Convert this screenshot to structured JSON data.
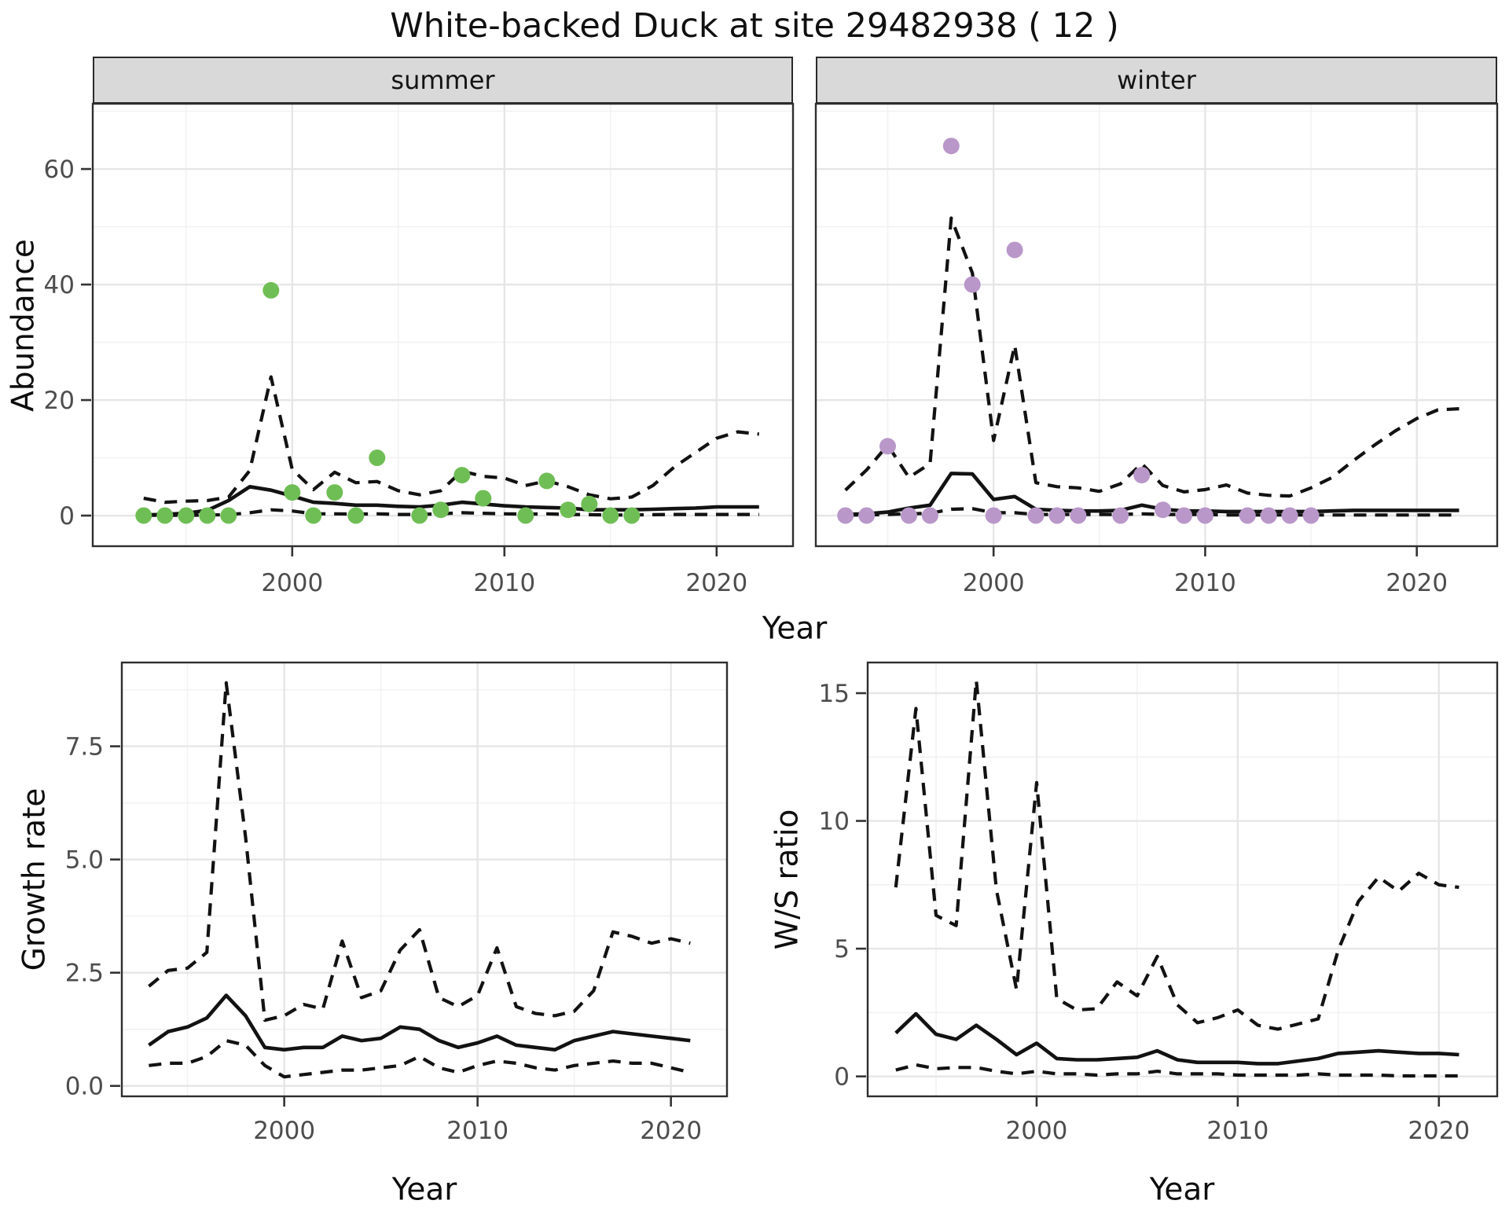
{
  "title": "White-backed Duck at site 29482938 ( 12 )",
  "colors": {
    "summer_points": "#6fbe55",
    "winter_points": "#b997c9",
    "line": "#121212",
    "strip_background": "#d9d9d9",
    "panel_border": "#2e2e2e",
    "grid_major": "#e6e6e6",
    "grid_minor": "#f1f1f1",
    "tick_label": "#4d4d4d"
  },
  "chart_data": [
    {
      "id": "abundance_summer",
      "type": "line",
      "facet_label": "summer",
      "xlabel": "Year",
      "ylabel": "Abundance",
      "xlim": [
        1990.6,
        2023.6
      ],
      "ylim": [
        -5.3,
        71.3
      ],
      "grid": "on",
      "legend": "none",
      "x_ticks": [
        2000,
        2010,
        2020
      ],
      "x_tick_labels": [
        "2000",
        "2010",
        "2020"
      ],
      "x_minor_ticks": [
        1995,
        2005,
        2015
      ],
      "y_ticks": [
        0,
        20,
        40,
        60
      ],
      "y_tick_labels": [
        "0",
        "20",
        "40",
        "60"
      ],
      "y_minor_ticks": [
        10,
        30,
        50,
        70
      ],
      "x": [
        1993,
        1994,
        1995,
        1996,
        1997,
        1998,
        1999,
        2000,
        2001,
        2002,
        2003,
        2004,
        2005,
        2006,
        2007,
        2008,
        2009,
        2010,
        2011,
        2012,
        2013,
        2014,
        2015,
        2016,
        2017,
        2018,
        2019,
        2020,
        2021,
        2022
      ],
      "series": [
        {
          "name": "upper_ci_dashed",
          "style": "dashed",
          "y": [
            3.0,
            2.3,
            2.5,
            2.6,
            3.2,
            7.8,
            24,
            8.0,
            4.5,
            7.5,
            5.7,
            5.9,
            4.3,
            3.6,
            4.3,
            7.7,
            6.8,
            6.5,
            5.2,
            6.0,
            5.0,
            3.6,
            2.9,
            3.2,
            5.2,
            8.4,
            10.9,
            13.4,
            14.5,
            14.1
          ]
        },
        {
          "name": "lower_ci_dashed",
          "style": "dashed",
          "y": [
            0.05,
            0.05,
            0.05,
            0.1,
            0.15,
            0.5,
            1.0,
            0.8,
            0.3,
            0.3,
            0.25,
            0.3,
            0.2,
            0.2,
            0.3,
            0.5,
            0.4,
            0.3,
            0.25,
            0.3,
            0.2,
            0.15,
            0.1,
            0.1,
            0.15,
            0.2,
            0.2,
            0.2,
            0.2,
            0.2
          ]
        },
        {
          "name": "median_solid",
          "style": "solid",
          "y": [
            0.1,
            0.2,
            0.4,
            0.9,
            2.6,
            5.0,
            4.4,
            3.4,
            2.3,
            2.1,
            1.8,
            1.8,
            1.6,
            1.5,
            1.8,
            2.3,
            2.0,
            1.7,
            1.5,
            1.4,
            1.3,
            1.0,
            1.0,
            1.0,
            1.1,
            1.2,
            1.3,
            1.5,
            1.5,
            1.5
          ]
        }
      ],
      "points": {
        "name": "observed_summer_counts",
        "color": "#6fbe55",
        "x": [
          1993,
          1994,
          1995,
          1996,
          1997,
          1999,
          2000,
          2001,
          2002,
          2003,
          2004,
          2006,
          2007,
          2008,
          2009,
          2011,
          2012,
          2013,
          2014,
          2015,
          2016
        ],
        "y": [
          0,
          0,
          0,
          0,
          0,
          39,
          4,
          0,
          4,
          0,
          10,
          0,
          1,
          7,
          3,
          0,
          6,
          1,
          2,
          0,
          0
        ]
      }
    },
    {
      "id": "abundance_winter",
      "type": "line",
      "facet_label": "winter",
      "xlabel": "Year",
      "ylabel": "Abundance",
      "xlim": [
        1991.6,
        2023.8
      ],
      "ylim": [
        -5.3,
        71.3
      ],
      "grid": "on",
      "legend": "none",
      "x_ticks": [
        2000,
        2010,
        2020
      ],
      "x_tick_labels": [
        "2000",
        "2010",
        "2020"
      ],
      "x_minor_ticks": [
        1995,
        2005,
        2015
      ],
      "y_ticks": [
        0,
        20,
        40,
        60
      ],
      "y_tick_labels": [
        "0",
        "20",
        "40",
        "60"
      ],
      "y_minor_ticks": [
        10,
        30,
        50,
        70
      ],
      "x": [
        1993,
        1994,
        1995,
        1996,
        1997,
        1998,
        1999,
        2000,
        2001,
        2002,
        2003,
        2004,
        2005,
        2006,
        2007,
        2008,
        2009,
        2010,
        2011,
        2012,
        2013,
        2014,
        2015,
        2016,
        2017,
        2018,
        2019,
        2020,
        2021,
        2022
      ],
      "series": [
        {
          "name": "upper_ci_dashed",
          "style": "dashed",
          "y": [
            4.4,
            7.9,
            12.2,
            6.6,
            9.0,
            51.5,
            42,
            13,
            29.5,
            5.7,
            5.0,
            4.8,
            4.2,
            5.5,
            9.0,
            5.2,
            4.1,
            4.5,
            5.3,
            3.9,
            3.5,
            3.4,
            4.8,
            6.6,
            9.5,
            12.2,
            14.7,
            16.8,
            18.3,
            18.5
          ]
        },
        {
          "name": "lower_ci_dashed",
          "style": "dashed",
          "y": [
            0.1,
            0.1,
            0.2,
            0.3,
            0.4,
            1.1,
            1.2,
            0.5,
            0.5,
            0.2,
            0.2,
            0.2,
            0.2,
            0.2,
            0.3,
            0.2,
            0.2,
            0.2,
            0.1,
            0.1,
            0.1,
            0.1,
            0.1,
            0.1,
            0.1,
            0.1,
            0.1,
            0.1,
            0.1,
            0.1
          ]
        },
        {
          "name": "median_solid",
          "style": "solid",
          "y": [
            0.2,
            0.3,
            0.6,
            1.3,
            1.8,
            7.3,
            7.2,
            2.8,
            3.3,
            1.1,
            0.9,
            0.8,
            0.8,
            0.9,
            1.8,
            1.1,
            0.8,
            0.8,
            0.7,
            0.7,
            0.7,
            0.7,
            0.7,
            0.8,
            0.9,
            0.9,
            0.9,
            0.9,
            0.9,
            0.9
          ]
        }
      ],
      "points": {
        "name": "observed_winter_counts",
        "color": "#b997c9",
        "x": [
          1993,
          1994,
          1995,
          1996,
          1997,
          1998,
          1999,
          2000,
          2001,
          2002,
          2003,
          2004,
          2006,
          2007,
          2008,
          2009,
          2010,
          2012,
          2013,
          2014,
          2015
        ],
        "y": [
          0,
          0,
          12,
          0,
          0,
          64,
          40,
          0,
          46,
          0,
          0,
          0,
          0,
          7,
          1,
          0,
          0,
          0,
          0,
          0,
          0
        ]
      }
    },
    {
      "id": "growth_rate",
      "type": "line",
      "facet_label": "",
      "xlabel": "Year",
      "ylabel": "Growth rate",
      "xlim": [
        1991.6,
        2022.9
      ],
      "ylim": [
        -0.23,
        9.35
      ],
      "grid": "on",
      "legend": "none",
      "x_ticks": [
        2000,
        2010,
        2020
      ],
      "x_tick_labels": [
        "2000",
        "2010",
        "2020"
      ],
      "x_minor_ticks": [
        1995,
        2005,
        2015
      ],
      "y_ticks": [
        0,
        2.5,
        5,
        7.5
      ],
      "y_tick_labels": [
        "0.0",
        "2.5",
        "5.0",
        "7.5"
      ],
      "y_minor_ticks": [
        1.25,
        3.75,
        6.25,
        8.75
      ],
      "x": [
        1993,
        1994,
        1995,
        1996,
        1997,
        1998,
        1999,
        2000,
        2001,
        2002,
        2003,
        2004,
        2005,
        2006,
        2007,
        2008,
        2009,
        2010,
        2011,
        2012,
        2013,
        2014,
        2015,
        2016,
        2017,
        2018,
        2019,
        2020,
        2021
      ],
      "series": [
        {
          "name": "upper_ci_dashed",
          "style": "dashed",
          "y": [
            2.2,
            2.55,
            2.6,
            2.95,
            8.9,
            5.5,
            1.45,
            1.55,
            1.8,
            1.7,
            3.2,
            1.95,
            2.1,
            3.0,
            3.45,
            1.95,
            1.75,
            2.0,
            3.05,
            1.75,
            1.6,
            1.55,
            1.65,
            2.1,
            3.4,
            3.3,
            3.15,
            3.25,
            3.15
          ]
        },
        {
          "name": "lower_ci_dashed",
          "style": "dashed",
          "y": [
            0.45,
            0.5,
            0.5,
            0.65,
            1.0,
            0.9,
            0.45,
            0.2,
            0.25,
            0.3,
            0.35,
            0.35,
            0.4,
            0.45,
            0.65,
            0.4,
            0.3,
            0.45,
            0.55,
            0.5,
            0.4,
            0.35,
            0.45,
            0.5,
            0.55,
            0.5,
            0.5,
            0.4,
            0.3
          ]
        },
        {
          "name": "median_solid",
          "style": "solid",
          "y": [
            0.9,
            1.2,
            1.3,
            1.5,
            2.0,
            1.55,
            0.85,
            0.8,
            0.85,
            0.85,
            1.1,
            1.0,
            1.05,
            1.3,
            1.25,
            1.0,
            0.85,
            0.95,
            1.1,
            0.9,
            0.85,
            0.8,
            1.0,
            1.1,
            1.2,
            1.15,
            1.1,
            1.05,
            1.0
          ]
        }
      ],
      "points": null
    },
    {
      "id": "ws_ratio",
      "type": "line",
      "facet_label": "",
      "xlabel": "Year",
      "ylabel": "W/S ratio",
      "xlim": [
        1991.6,
        2022.9
      ],
      "ylim": [
        -0.78,
        16.2
      ],
      "grid": "on",
      "legend": "none",
      "x_ticks": [
        2000,
        2010,
        2020
      ],
      "x_tick_labels": [
        "2000",
        "2010",
        "2020"
      ],
      "x_minor_ticks": [
        1995,
        2005,
        2015
      ],
      "y_ticks": [
        0,
        5,
        10,
        15
      ],
      "y_tick_labels": [
        "0",
        "5",
        "10",
        "15"
      ],
      "y_minor_ticks": [
        2.5,
        7.5,
        12.5
      ],
      "x": [
        1993,
        1994,
        1995,
        1996,
        1997,
        1998,
        1999,
        2000,
        2001,
        2002,
        2003,
        2004,
        2005,
        2006,
        2007,
        2008,
        2009,
        2010,
        2011,
        2012,
        2013,
        2014,
        2015,
        2016,
        2017,
        2018,
        2019,
        2020,
        2021
      ],
      "series": [
        {
          "name": "upper_ci_dashed",
          "style": "dashed",
          "y": [
            7.4,
            14.4,
            6.3,
            5.9,
            15.5,
            7.3,
            3.4,
            11.5,
            3.05,
            2.6,
            2.65,
            3.7,
            3.15,
            4.7,
            2.8,
            2.1,
            2.3,
            2.6,
            2.0,
            1.85,
            2.05,
            2.25,
            4.95,
            6.85,
            7.8,
            7.25,
            7.95,
            7.5,
            7.4
          ]
        },
        {
          "name": "lower_ci_dashed",
          "style": "dashed",
          "y": [
            0.25,
            0.45,
            0.3,
            0.35,
            0.35,
            0.2,
            0.1,
            0.2,
            0.1,
            0.1,
            0.05,
            0.1,
            0.1,
            0.2,
            0.1,
            0.1,
            0.1,
            0.05,
            0.05,
            0.05,
            0.05,
            0.1,
            0.05,
            0.05,
            0.05,
            0.02,
            0.02,
            0.02,
            0.02
          ]
        },
        {
          "name": "median_solid",
          "style": "solid",
          "y": [
            1.7,
            2.45,
            1.65,
            1.45,
            2.0,
            1.45,
            0.85,
            1.3,
            0.7,
            0.65,
            0.65,
            0.7,
            0.75,
            1.0,
            0.65,
            0.55,
            0.55,
            0.55,
            0.5,
            0.5,
            0.6,
            0.7,
            0.9,
            0.95,
            1.0,
            0.95,
            0.9,
            0.9,
            0.85
          ]
        }
      ],
      "points": null
    }
  ]
}
